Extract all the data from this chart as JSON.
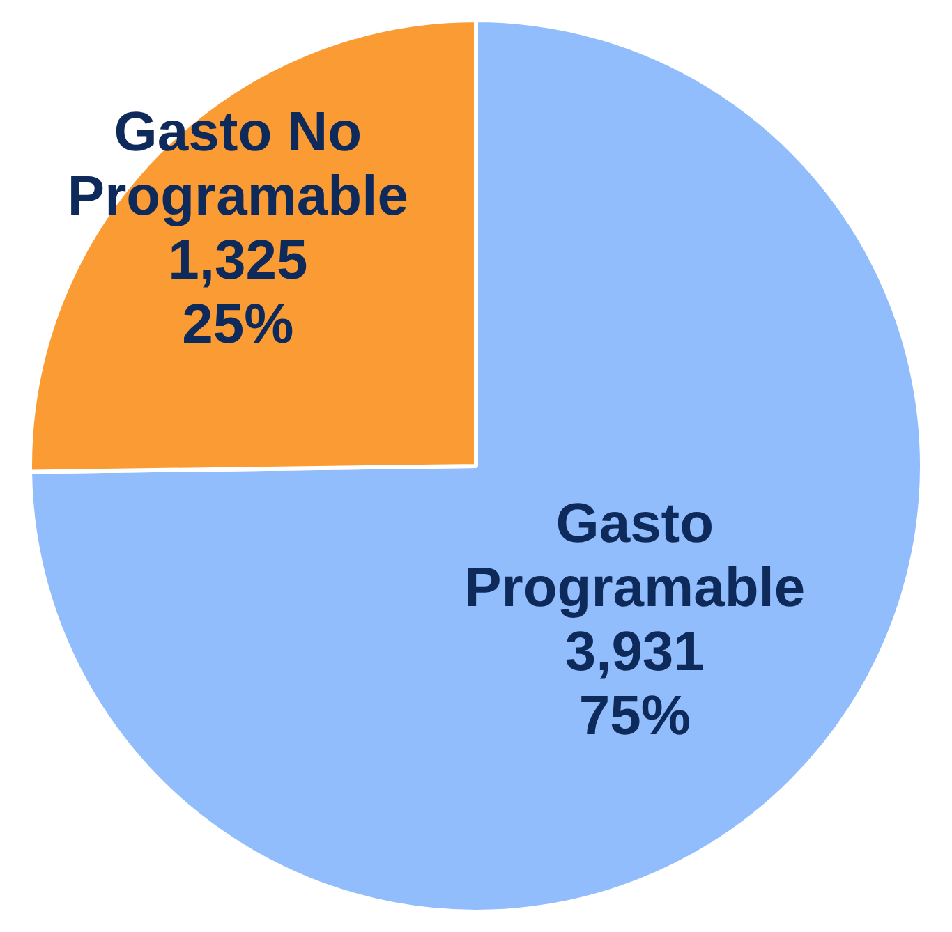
{
  "chart_data": {
    "type": "pie",
    "categories": [
      "Gasto Programable",
      "Gasto No Programable"
    ],
    "values": [
      3931,
      1325
    ],
    "colors": [
      "#92bdfc",
      "#fb9b34"
    ],
    "value_labels": [
      "3,931\n75%",
      "1,325\n25%"
    ],
    "legend": false
  }
}
